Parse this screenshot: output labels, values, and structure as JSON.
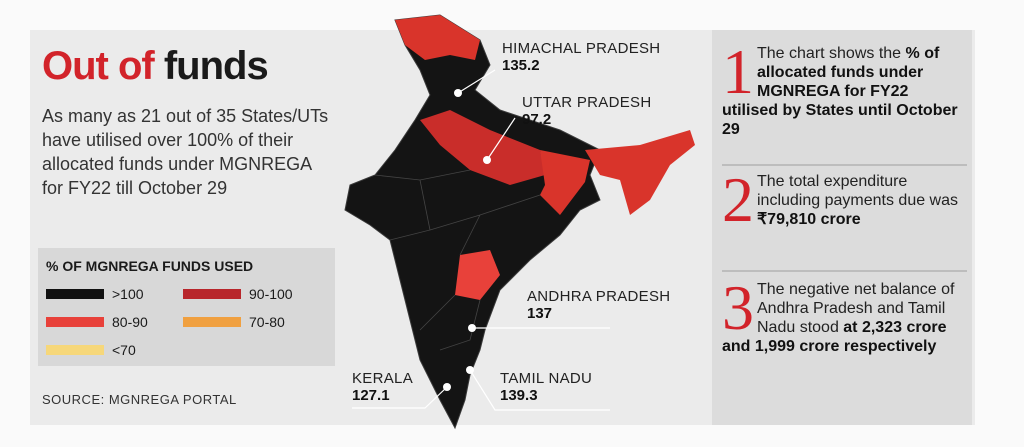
{
  "title": {
    "part1": "Out of",
    "part2": "funds"
  },
  "description": "As many as 21 out of 35 States/UTs have utilised over 100% of their allocated funds under MGNREGA for FY22 till October 29",
  "legend": {
    "title": "% OF MGNREGA FUNDS USED",
    "items": [
      {
        "label": ">100",
        "color": "#111111"
      },
      {
        "label": "90-100",
        "color": "#b8262b"
      },
      {
        "label": "80-90",
        "color": "#e8413a"
      },
      {
        "label": "70-80",
        "color": "#f0a040"
      },
      {
        "label": "<70",
        "color": "#f6d77a"
      }
    ]
  },
  "source": "SOURCE: MGNREGA PORTAL",
  "callouts": [
    {
      "state": "HIMACHAL PRADESH",
      "value": 135.2
    },
    {
      "state": "UTTAR PRADESH",
      "value": 97.2
    },
    {
      "state": "ANDHRA PRADESH",
      "value": 137
    },
    {
      "state": "KERALA",
      "value": 127.1
    },
    {
      "state": "TAMIL NADU",
      "value": 139.3
    }
  ],
  "notes": [
    {
      "number": "1",
      "segments": [
        {
          "text": "The chart shows the ",
          "bold": false
        },
        {
          "text": "% of allocated funds under MGNREGA for FY22 utilised by States until October 29",
          "bold": true
        }
      ]
    },
    {
      "number": "2",
      "segments": [
        {
          "text": "The total expenditure including payments due was ",
          "bold": false
        },
        {
          "text": "₹79,810 crore",
          "bold": true
        }
      ]
    },
    {
      "number": "3",
      "segments": [
        {
          "text": "The negative net balance of Andhra Pradesh and Tamil Nadu stood ",
          "bold": false
        },
        {
          "text": "at 2,323 crore and 1,999 crore respectively",
          "bold": true
        }
      ]
    }
  ]
}
